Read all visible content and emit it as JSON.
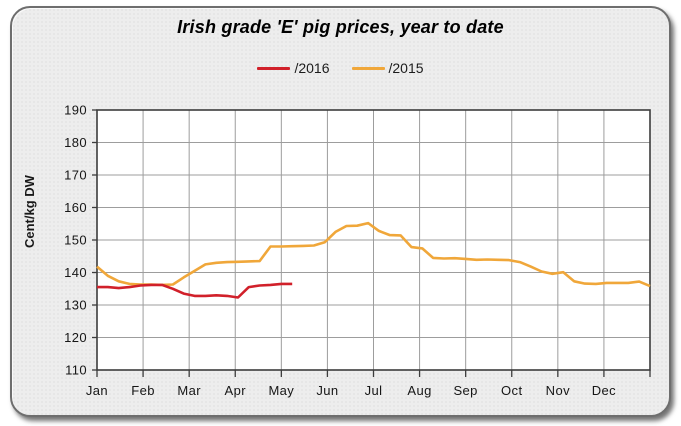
{
  "chart_data": {
    "type": "line",
    "title": "Irish grade 'E' pig prices, year to date",
    "ylabel": "Cent/kg DW",
    "months": [
      "Jan",
      "Feb",
      "Mar",
      "Apr",
      "May",
      "Jun",
      "Jul",
      "Aug",
      "Sep",
      "Oct",
      "Nov",
      "Dec"
    ],
    "yticks": [
      110,
      120,
      130,
      140,
      150,
      160,
      170,
      180,
      190
    ],
    "ylim": [
      110,
      190
    ],
    "x_weeks_total": 52,
    "grid": true,
    "legend_position": "top-center",
    "colors": {
      "grid": "#9d9d9d",
      "frame": "#3c3c3c",
      "plot_background": "#ffffff",
      "panel_background": "#ededed",
      "axis_text": "#161616"
    },
    "series": [
      {
        "name": "/2016",
        "color": "#d1202a",
        "values": [
          135.5,
          135.5,
          135.2,
          135.5,
          136,
          136.2,
          136.2,
          135,
          133.5,
          132.8,
          132.8,
          133,
          132.8,
          132.3,
          135.5,
          136,
          136.2,
          136.5,
          136.5
        ]
      },
      {
        "name": "/2015",
        "color": "#f0a73a",
        "values": [
          141.8,
          139,
          137.3,
          136.5,
          136.3,
          136.3,
          136.2,
          136.3,
          138.5,
          140.5,
          142.5,
          143,
          143.2,
          143.3,
          143.4,
          143.5,
          148,
          148,
          148.1,
          148.2,
          148.3,
          149.3,
          152.5,
          154.3,
          154.4,
          155.2,
          152.8,
          151.5,
          151.4,
          147.8,
          147.4,
          144.5,
          144.3,
          144.4,
          144.2,
          143.9,
          144,
          143.9,
          143.8,
          143.2,
          141.8,
          140.3,
          139.6,
          140.1,
          137.3,
          136.6,
          136.5,
          136.8,
          136.8,
          136.8,
          137.2,
          135.8
        ]
      }
    ]
  }
}
